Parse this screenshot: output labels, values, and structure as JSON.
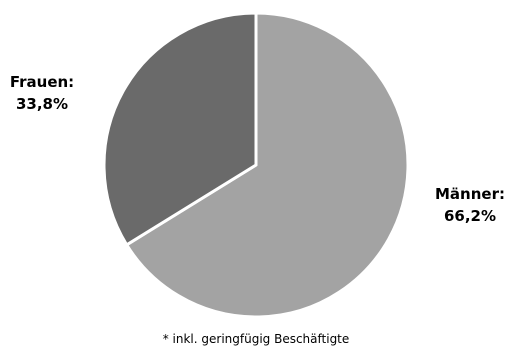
{
  "chart_data": {
    "type": "pie",
    "slices": [
      {
        "name": "Männer:",
        "value_label": "66,2%",
        "value": 66.2,
        "color": "#a3a3a3"
      },
      {
        "name": "Frauen:",
        "value_label": "33,8%",
        "value": 33.8,
        "color": "#6a6a6a"
      }
    ],
    "footnote": "* inkl. geringfügig Beschäftigte"
  }
}
